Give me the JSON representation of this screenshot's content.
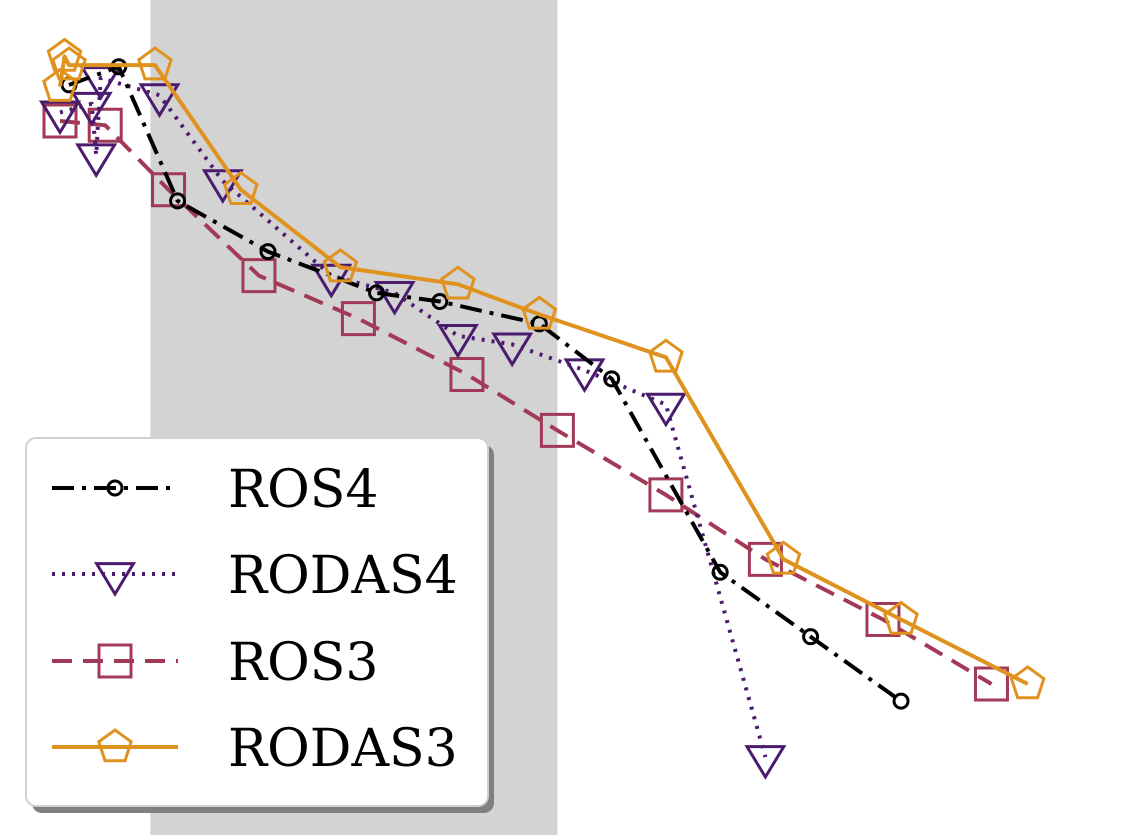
{
  "chart_data": {
    "type": "line",
    "title": "",
    "xlabel": "",
    "ylabel": "",
    "grid": false,
    "legend_position": "bottom-left",
    "shaded_region": {
      "x": [
        1.0,
        5.5
      ],
      "color": "#d3d3d3"
    },
    "xlim": [
      0,
      11.5
    ],
    "ylim": [
      -8.6,
      0.3
    ],
    "series": [
      {
        "name": "ROS4",
        "color": "#000000",
        "linestyle": "dashdot",
        "marker": "circle",
        "x": [
          0.1,
          0.65,
          1.3,
          2.3,
          3.5,
          4.2,
          5.3,
          6.1,
          7.3,
          8.3,
          9.3
        ],
        "y": [
          -0.28,
          -0.07,
          -1.63,
          -2.22,
          -2.7,
          -2.8,
          -3.06,
          -3.7,
          -5.95,
          -6.7,
          -7.45
        ]
      },
      {
        "name": "RODAS4",
        "color": "#4b1b6e",
        "linestyle": "dotted",
        "marker": "triangle-down",
        "x": [
          0.0,
          0.35,
          0.4,
          0.45,
          1.1,
          1.8,
          3.0,
          3.7,
          4.4,
          5.0,
          5.8,
          6.7,
          7.8
        ],
        "y": [
          -0.6,
          -0.5,
          -1.1,
          -0.2,
          -0.4,
          -1.4,
          -2.5,
          -2.7,
          -3.2,
          -3.3,
          -3.6,
          -4.0,
          -8.1
        ]
      },
      {
        "name": "ROS3",
        "color": "#a23a57",
        "linestyle": "dashed",
        "marker": "square",
        "x": [
          0.0,
          0.5,
          1.2,
          2.2,
          3.3,
          4.5,
          5.5,
          6.7,
          7.8,
          9.1,
          10.3
        ],
        "y": [
          -0.7,
          -0.75,
          -1.5,
          -2.5,
          -3.0,
          -3.65,
          -4.3,
          -5.05,
          -5.8,
          -6.5,
          -7.25
        ]
      },
      {
        "name": "RODAS3",
        "color": "#e0921e",
        "linestyle": "solid",
        "marker": "pentagon",
        "x": [
          0.0,
          0.05,
          0.1,
          1.05,
          2.0,
          3.1,
          4.4,
          5.3,
          6.7,
          8.0,
          9.3,
          10.7
        ],
        "y": [
          -0.3,
          0.05,
          -0.05,
          -0.05,
          -1.5,
          -2.4,
          -2.6,
          -2.95,
          -3.45,
          -5.8,
          -6.5,
          -7.25
        ]
      }
    ]
  }
}
